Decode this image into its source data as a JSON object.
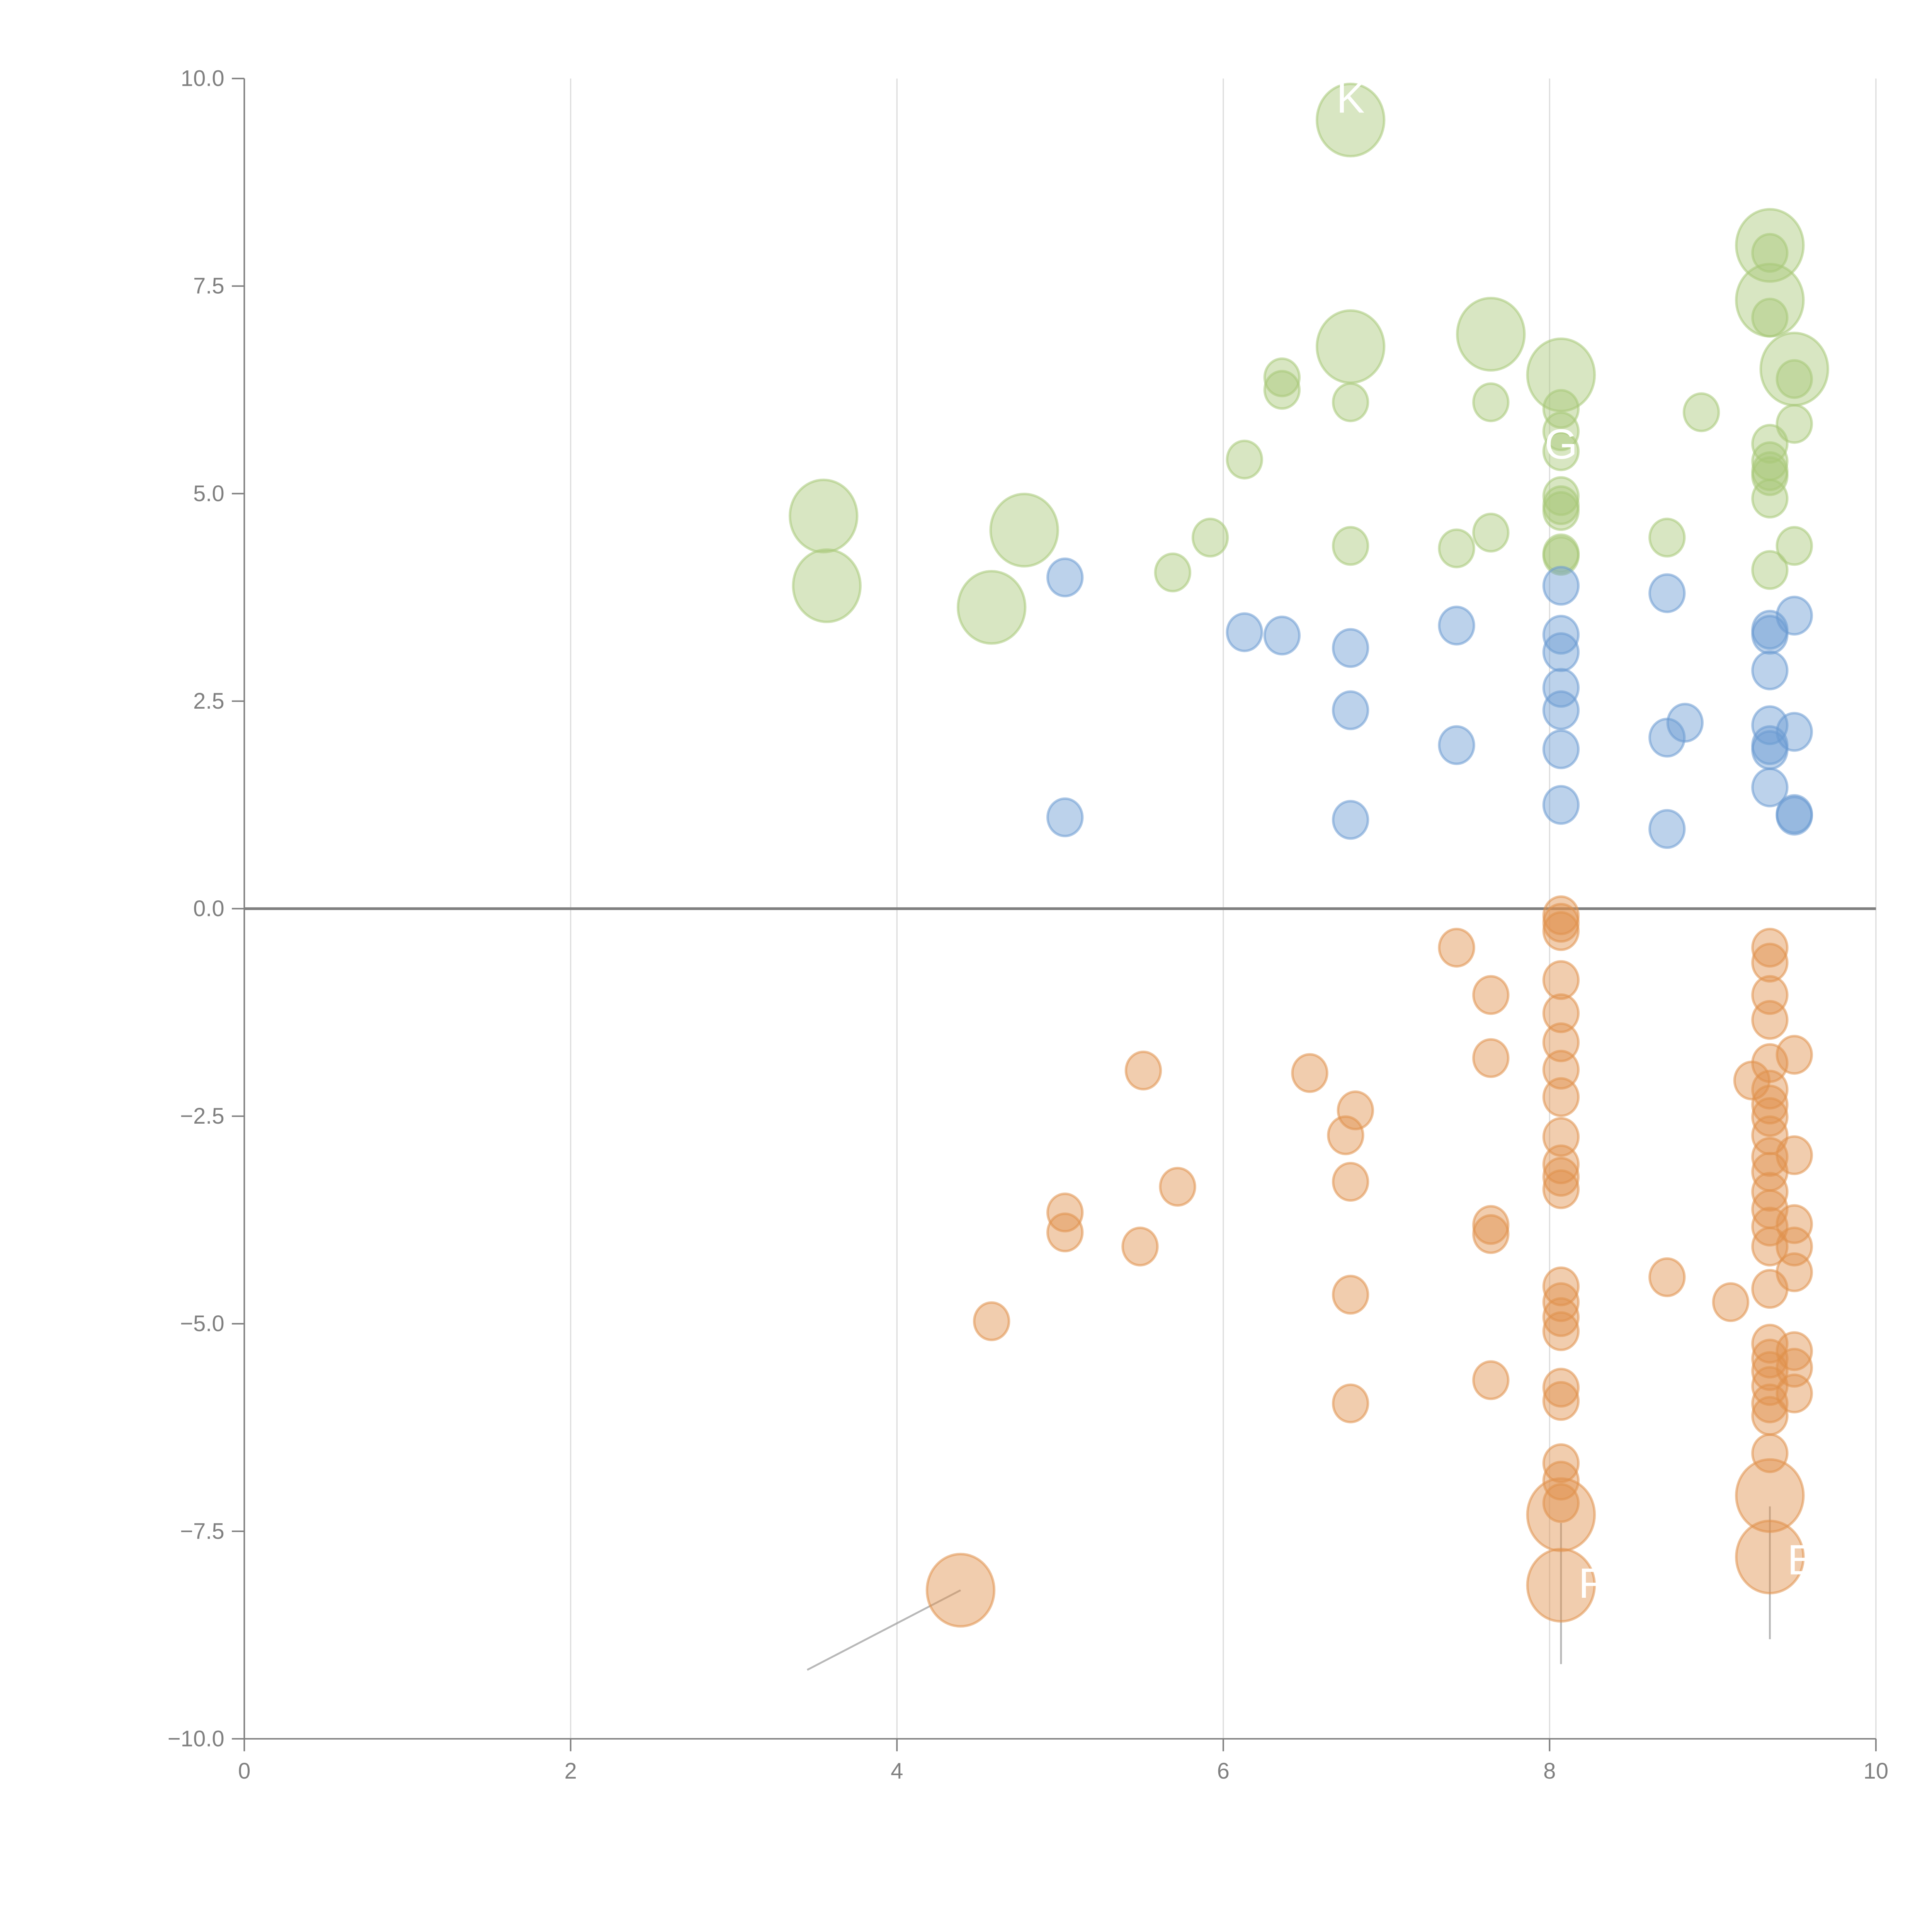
{
  "chart_data": {
    "type": "scatter",
    "title": "",
    "xlabel": "",
    "ylabel": "",
    "xlim": [
      0,
      10
    ],
    "ylim": [
      -10,
      10
    ],
    "x_ticks": [
      "0",
      "2",
      "4",
      "6",
      "8",
      "10"
    ],
    "x_tick_values": [
      0,
      2,
      4,
      6,
      8,
      10
    ],
    "y_ticks": [
      "10.0",
      "7.5",
      "5.0",
      "2.5",
      "0.0",
      "−2.5",
      "−5.0",
      "−7.5",
      "−10.0"
    ],
    "y_tick_values": [
      10,
      7.5,
      5,
      2.5,
      0,
      -2.5,
      -5,
      -7.5,
      -10
    ],
    "grid": "vertical",
    "legend": "none",
    "series": [
      {
        "name": "green group",
        "color": "#a8c878",
        "points": [
          [
            6.78,
            9.5,
            3
          ],
          [
            9.35,
            7.99,
            3
          ],
          [
            9.35,
            7.33,
            3
          ],
          [
            7.64,
            6.92,
            3
          ],
          [
            6.78,
            6.77,
            3
          ],
          [
            8.07,
            6.43,
            3
          ],
          [
            9.5,
            6.5,
            3
          ],
          [
            3.55,
            4.73,
            3
          ],
          [
            4.78,
            4.56,
            3
          ],
          [
            3.57,
            3.89,
            3
          ],
          [
            4.58,
            3.63,
            3
          ],
          [
            6.36,
            6.4,
            1
          ],
          [
            6.36,
            6.25,
            1
          ],
          [
            6.78,
            6.1,
            1
          ],
          [
            7.64,
            6.1,
            1
          ],
          [
            8.07,
            6.02,
            1
          ],
          [
            8.93,
            5.98,
            1
          ],
          [
            9.5,
            5.84,
            1
          ],
          [
            6.13,
            5.41,
            1
          ],
          [
            9.35,
            5.6,
            1
          ],
          [
            9.35,
            5.39,
            1
          ],
          [
            9.35,
            5.27,
            1
          ],
          [
            9.35,
            5.21,
            1
          ],
          [
            9.35,
            4.94,
            1
          ],
          [
            8.07,
            5.51,
            1
          ],
          [
            8.07,
            4.97,
            1
          ],
          [
            8.07,
            4.86,
            1
          ],
          [
            8.07,
            4.79,
            1
          ],
          [
            8.07,
            4.28,
            1
          ],
          [
            8.07,
            4.25,
            1
          ],
          [
            5.92,
            4.47,
            1
          ],
          [
            5.69,
            4.05,
            1
          ],
          [
            6.78,
            4.37,
            1
          ],
          [
            7.43,
            4.34,
            1
          ],
          [
            7.64,
            4.53,
            1
          ],
          [
            8.72,
            4.47,
            1
          ],
          [
            9.5,
            4.37,
            1
          ],
          [
            9.35,
            4.08,
            1
          ],
          [
            9.35,
            7.9,
            1
          ],
          [
            9.35,
            7.12,
            1
          ],
          [
            9.5,
            6.38,
            1
          ],
          [
            8.07,
            5.75,
            1
          ]
        ]
      },
      {
        "name": "blue group",
        "color": "#6b9bd2",
        "points": [
          [
            5.03,
            3.99,
            1
          ],
          [
            6.13,
            3.33,
            1
          ],
          [
            6.36,
            3.29,
            1
          ],
          [
            6.78,
            3.14,
            1
          ],
          [
            7.43,
            3.41,
            1
          ],
          [
            8.07,
            3.89,
            1
          ],
          [
            8.07,
            3.3,
            1
          ],
          [
            8.07,
            3.09,
            1
          ],
          [
            8.07,
            2.66,
            1
          ],
          [
            8.07,
            2.39,
            1
          ],
          [
            8.07,
            1.92,
            1
          ],
          [
            8.07,
            1.25,
            1
          ],
          [
            8.72,
            3.8,
            1
          ],
          [
            6.78,
            2.39,
            1
          ],
          [
            7.43,
            1.97,
            1
          ],
          [
            8.72,
            2.06,
            1
          ],
          [
            8.83,
            2.24,
            1
          ],
          [
            9.35,
            3.36,
            1
          ],
          [
            9.35,
            3.3,
            1
          ],
          [
            9.35,
            2.87,
            1
          ],
          [
            9.35,
            2.21,
            1
          ],
          [
            9.35,
            1.97,
            1
          ],
          [
            9.35,
            1.91,
            1
          ],
          [
            9.5,
            3.53,
            1
          ],
          [
            9.5,
            2.13,
            1
          ],
          [
            9.35,
            1.46,
            1
          ],
          [
            9.5,
            1.14,
            1
          ],
          [
            9.5,
            1.12,
            1
          ],
          [
            5.03,
            1.1,
            1
          ],
          [
            6.78,
            1.07,
            1
          ],
          [
            8.72,
            0.96,
            1
          ]
        ]
      },
      {
        "name": "orange group",
        "color": "#e0914c",
        "points": [
          [
            4.39,
            -8.21,
            3
          ],
          [
            8.07,
            -7.3,
            3
          ],
          [
            8.07,
            -8.15,
            3
          ],
          [
            9.35,
            -7.07,
            3
          ],
          [
            9.35,
            -7.81,
            3
          ],
          [
            7.43,
            -0.47,
            1
          ],
          [
            7.64,
            -1.04,
            1
          ],
          [
            7.64,
            -1.8,
            1
          ],
          [
            8.07,
            -0.08,
            1
          ],
          [
            8.07,
            -0.17,
            1
          ],
          [
            8.07,
            -0.27,
            1
          ],
          [
            8.07,
            -0.86,
            1
          ],
          [
            8.07,
            -1.26,
            1
          ],
          [
            8.07,
            -1.61,
            1
          ],
          [
            8.07,
            -1.94,
            1
          ],
          [
            8.07,
            -2.27,
            1
          ],
          [
            8.07,
            -2.75,
            1
          ],
          [
            8.07,
            -3.08,
            1
          ],
          [
            8.07,
            -3.23,
            1
          ],
          [
            8.07,
            -3.38,
            1
          ],
          [
            8.07,
            -4.55,
            1
          ],
          [
            8.07,
            -4.74,
            1
          ],
          [
            8.07,
            -4.92,
            1
          ],
          [
            8.07,
            -5.09,
            1
          ],
          [
            8.07,
            -5.77,
            1
          ],
          [
            8.07,
            -5.93,
            1
          ],
          [
            8.07,
            -6.68,
            1
          ],
          [
            8.07,
            -6.89,
            1
          ],
          [
            8.07,
            -7.16,
            1
          ],
          [
            5.51,
            -1.95,
            1
          ],
          [
            6.53,
            -1.98,
            1
          ],
          [
            6.81,
            -2.43,
            1
          ],
          [
            6.75,
            -2.73,
            1
          ],
          [
            6.78,
            -3.29,
            1
          ],
          [
            5.72,
            -3.35,
            1
          ],
          [
            5.03,
            -3.66,
            1
          ],
          [
            5.03,
            -3.9,
            1
          ],
          [
            5.49,
            -4.07,
            1
          ],
          [
            7.64,
            -3.81,
            1
          ],
          [
            7.64,
            -3.92,
            1
          ],
          [
            6.78,
            -4.65,
            1
          ],
          [
            4.58,
            -4.97,
            1
          ],
          [
            7.64,
            -5.68,
            1
          ],
          [
            6.78,
            -5.96,
            1
          ],
          [
            8.72,
            -4.44,
            1
          ],
          [
            9.11,
            -4.74,
            1
          ],
          [
            9.35,
            -0.47,
            1
          ],
          [
            9.35,
            -0.65,
            1
          ],
          [
            9.35,
            -1.04,
            1
          ],
          [
            9.35,
            -1.34,
            1
          ],
          [
            9.35,
            -1.86,
            1
          ],
          [
            9.24,
            -2.07,
            1
          ],
          [
            9.35,
            -2.18,
            1
          ],
          [
            9.35,
            -2.36,
            1
          ],
          [
            9.35,
            -2.51,
            1
          ],
          [
            9.35,
            -2.73,
            1
          ],
          [
            9.35,
            -2.99,
            1
          ],
          [
            9.35,
            -3.17,
            1
          ],
          [
            9.35,
            -3.41,
            1
          ],
          [
            9.35,
            -3.62,
            1
          ],
          [
            9.35,
            -3.83,
            1
          ],
          [
            9.35,
            -4.07,
            1
          ],
          [
            9.35,
            -4.58,
            1
          ],
          [
            9.5,
            -1.76,
            1
          ],
          [
            9.5,
            -2.97,
            1
          ],
          [
            9.5,
            -3.8,
            1
          ],
          [
            9.5,
            -4.07,
            1
          ],
          [
            9.5,
            -4.38,
            1
          ],
          [
            9.35,
            -5.24,
            1
          ],
          [
            9.35,
            -5.42,
            1
          ],
          [
            9.35,
            -5.57,
            1
          ],
          [
            9.35,
            -5.75,
            1
          ],
          [
            9.35,
            -5.96,
            1
          ],
          [
            9.35,
            -6.11,
            1
          ],
          [
            9.35,
            -6.56,
            1
          ],
          [
            9.5,
            -5.33,
            1
          ],
          [
            9.5,
            -5.53,
            1
          ],
          [
            9.5,
            -5.84,
            1
          ]
        ]
      }
    ],
    "annotations": [
      {
        "text": "K",
        "x": 6.78,
        "y": 9.5
      },
      {
        "text": "G",
        "x": 8.07,
        "y": 5.51
      },
      {
        "text": "F",
        "x": 8.07,
        "y": -8.15
      },
      {
        "text": "E",
        "x": 9.35,
        "y": -7.81
      }
    ],
    "leader_lines": [
      {
        "x": 8.07,
        "y1": -7.4,
        "y2": -9.1
      },
      {
        "x": 9.35,
        "y1": -7.2,
        "y2": -8.8
      },
      {
        "x1": 4.39,
        "y1": -8.21,
        "x2": 3.45,
        "y2": -9.17
      }
    ]
  }
}
